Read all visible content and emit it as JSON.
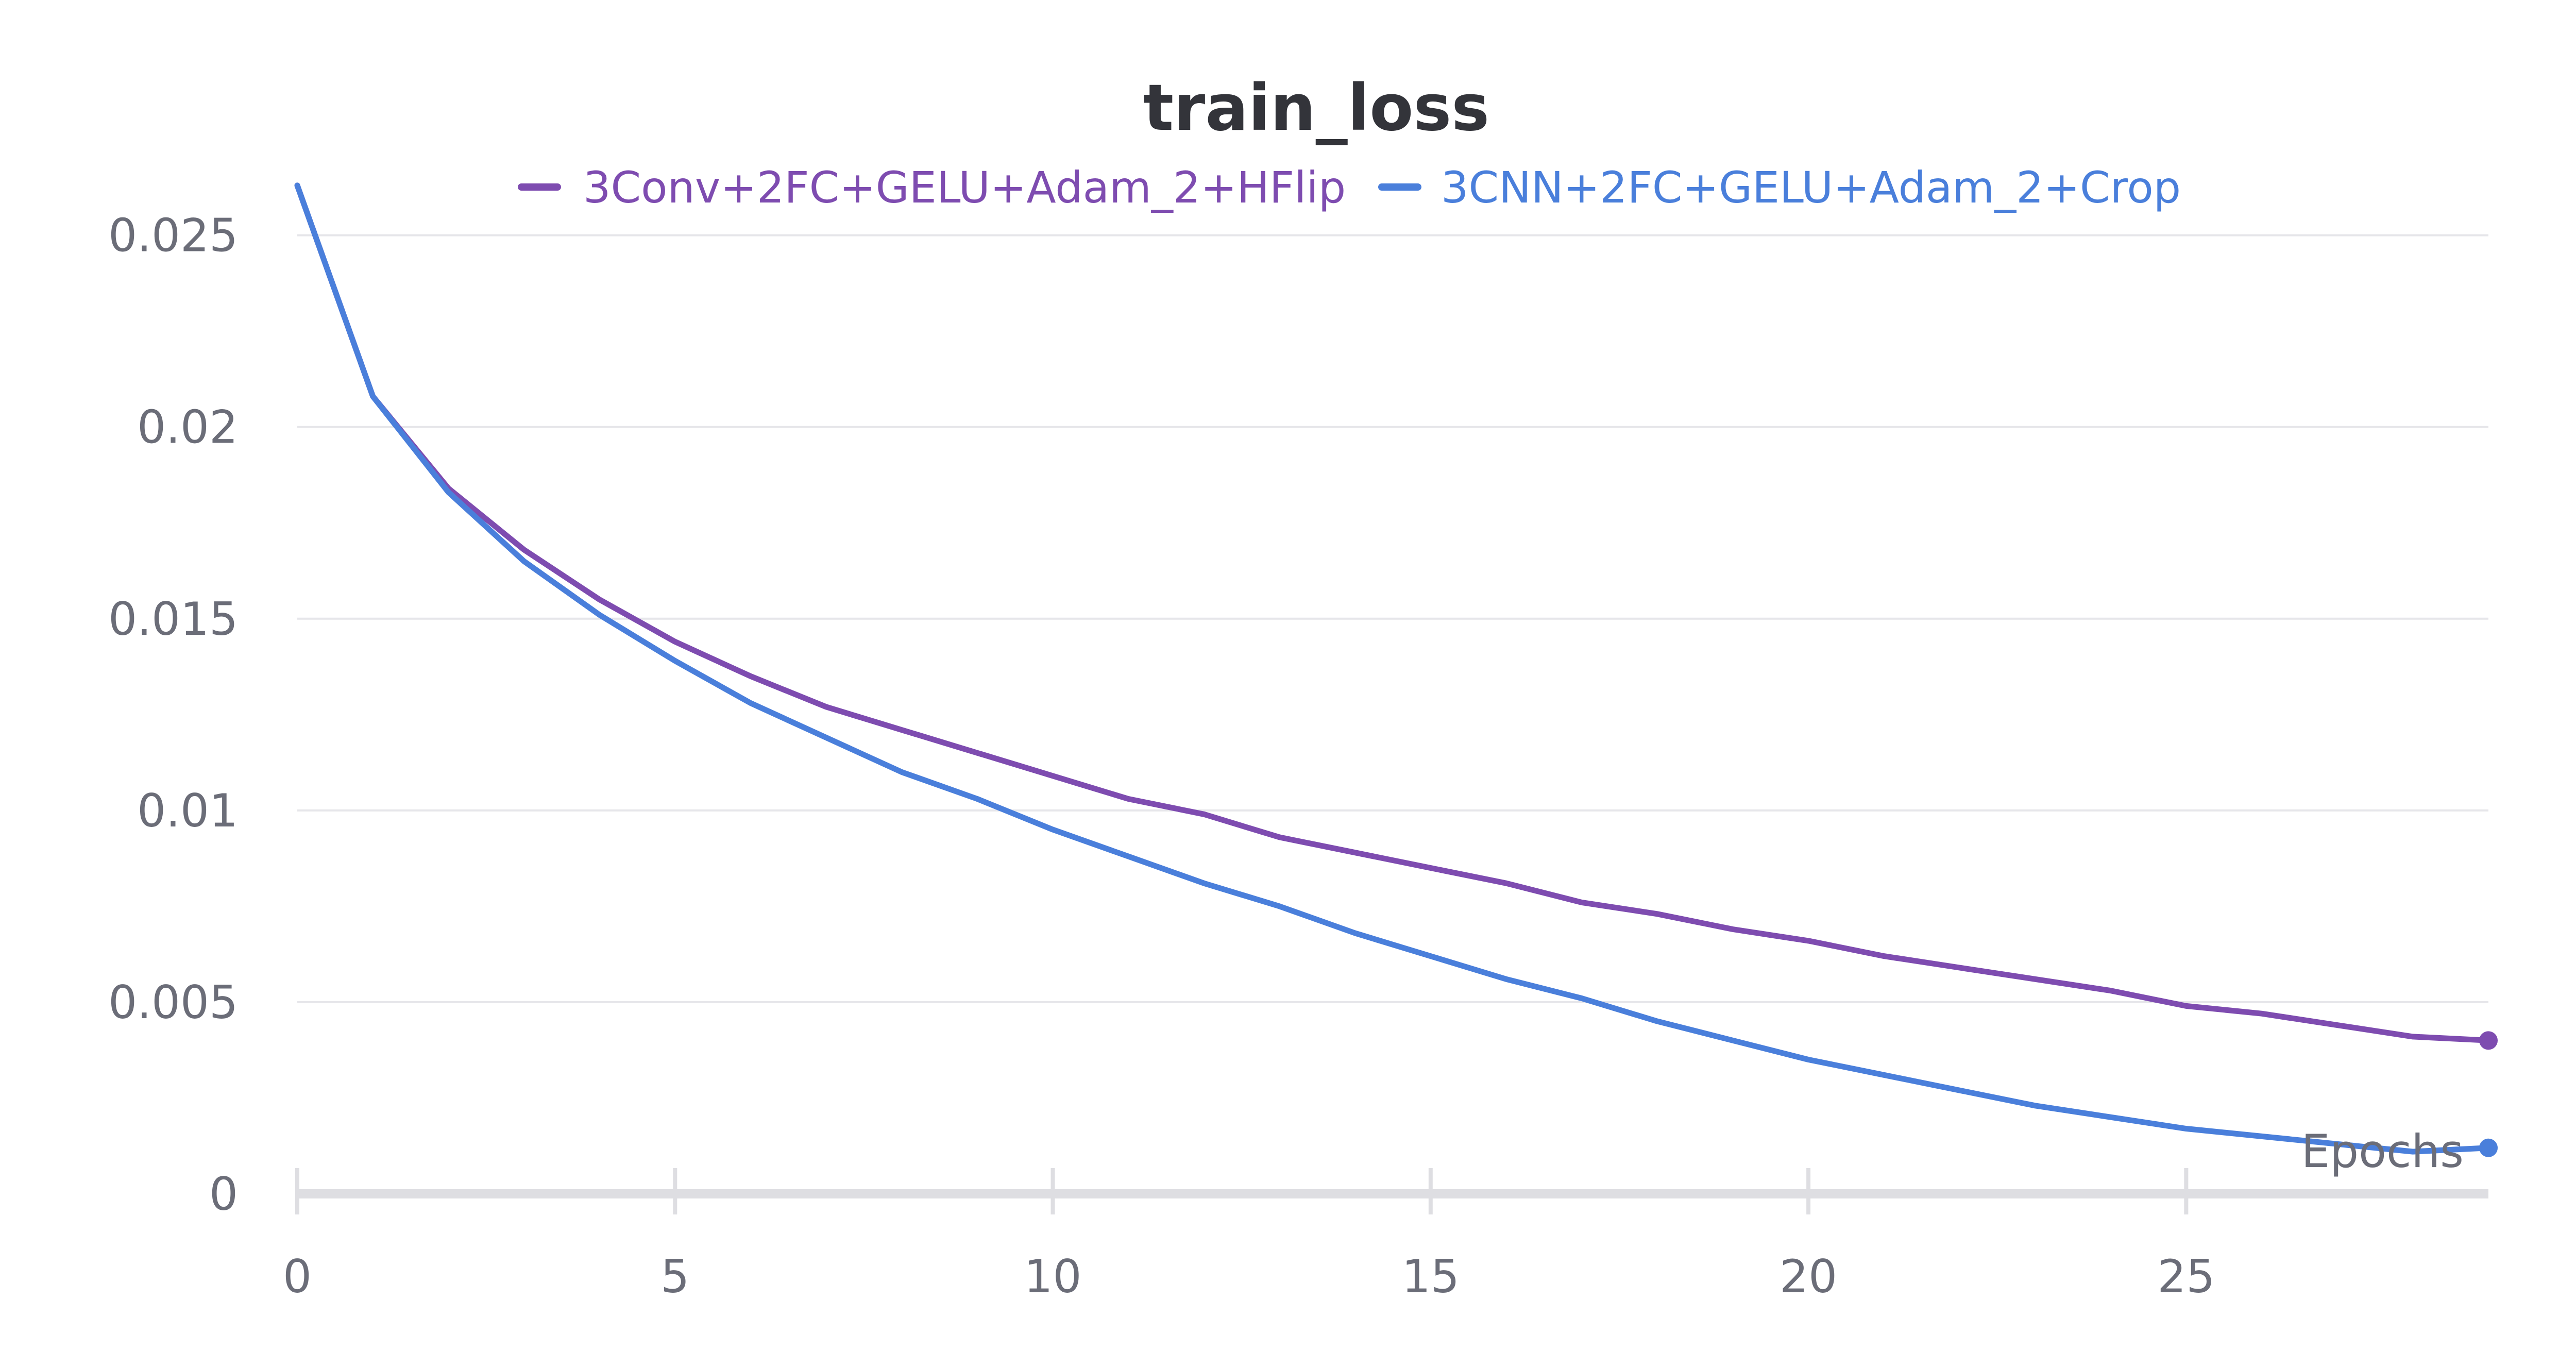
{
  "chart_data": {
    "type": "line",
    "title": "train_loss",
    "xlabel": "Epochs",
    "ylabel": "",
    "xlim": [
      0,
      29
    ],
    "ylim": [
      0,
      0.0265
    ],
    "x_ticks": [
      0,
      5,
      10,
      15,
      20,
      25
    ],
    "x_tick_labels": [
      "0",
      "5",
      "10",
      "15",
      "20",
      "25"
    ],
    "y_ticks": [
      0,
      0.005,
      0.01,
      0.015,
      0.02,
      0.025
    ],
    "y_tick_labels": [
      "0",
      "0.005",
      "0.01",
      "0.015",
      "0.02",
      "0.025"
    ],
    "grid": true,
    "legend_position": "top-center",
    "x": [
      0,
      1,
      2,
      3,
      4,
      5,
      6,
      7,
      8,
      9,
      10,
      11,
      12,
      13,
      14,
      15,
      16,
      17,
      18,
      19,
      20,
      21,
      22,
      23,
      24,
      25,
      26,
      27,
      28,
      29
    ],
    "series": [
      {
        "name": "3Conv+2FC+GELU+Adam_2+HFlip",
        "color": "#7e4cb0",
        "values": [
          0.0263,
          0.0208,
          0.0184,
          0.0168,
          0.0155,
          0.0144,
          0.0135,
          0.0127,
          0.0121,
          0.0115,
          0.0109,
          0.0103,
          0.0099,
          0.0093,
          0.0089,
          0.0085,
          0.0081,
          0.0076,
          0.0073,
          0.0069,
          0.0066,
          0.0062,
          0.0059,
          0.0056,
          0.0053,
          0.0049,
          0.0047,
          0.0044,
          0.0041,
          0.004
        ]
      },
      {
        "name": "3CNN+2FC+GELU+Adam_2+Crop",
        "color": "#4a7fdb",
        "values": [
          0.0263,
          0.0208,
          0.0183,
          0.0165,
          0.0151,
          0.0139,
          0.0128,
          0.0119,
          0.011,
          0.0103,
          0.0095,
          0.0088,
          0.0081,
          0.0075,
          0.0068,
          0.0062,
          0.0056,
          0.0051,
          0.0045,
          0.004,
          0.0035,
          0.0031,
          0.0027,
          0.0023,
          0.002,
          0.0017,
          0.0015,
          0.0013,
          0.0011,
          0.0012
        ]
      }
    ]
  }
}
